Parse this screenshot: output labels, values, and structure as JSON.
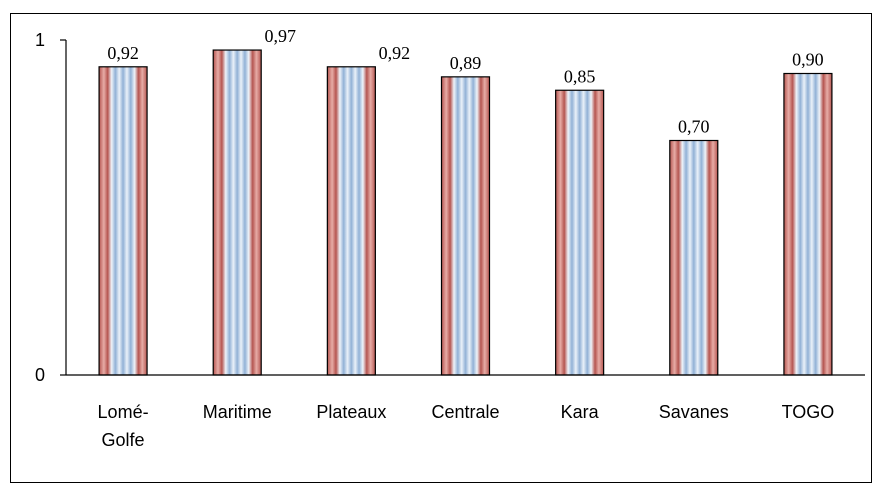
{
  "chart_data": {
    "type": "bar",
    "categories": [
      "Lomé-Golfe",
      "Maritime",
      "Plateaux",
      "Centrale",
      "Kara",
      "Savanes",
      "TOGO"
    ],
    "category_lines": [
      [
        "Lomé-",
        "Golfe"
      ],
      [
        "Maritime"
      ],
      [
        "Plateaux"
      ],
      [
        "Centrale"
      ],
      [
        "Kara"
      ],
      [
        "Savanes"
      ],
      [
        "TOGO"
      ]
    ],
    "values": [
      0.92,
      0.97,
      0.92,
      0.89,
      0.85,
      0.7,
      0.9
    ],
    "data_labels": [
      "0,92",
      "0,97",
      "0,92",
      "0,89",
      "0,85",
      "0,70",
      "0,90"
    ],
    "ylim": [
      0,
      1
    ],
    "yticks": [
      "0",
      "1"
    ],
    "title": "",
    "xlabel": "",
    "ylabel": "",
    "grid": false,
    "legend": "none",
    "bar_style": "vertical stripes",
    "colors": {
      "red": "#b0504a",
      "red_light": "#e8b0aa",
      "blue": "#8fb0d6",
      "blue_light": "#e4eef8",
      "outline": "#000000"
    }
  }
}
